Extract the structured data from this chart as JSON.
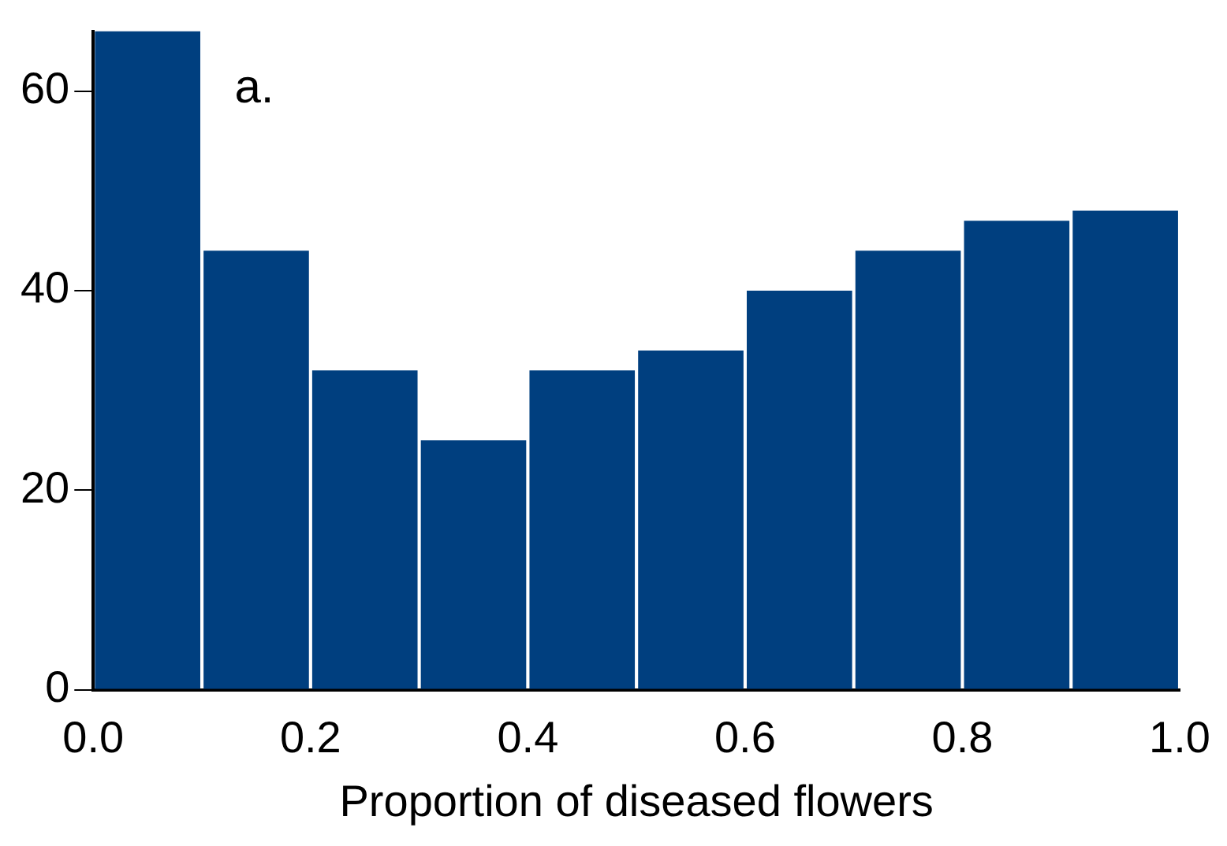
{
  "chart_data": {
    "type": "histogram",
    "xlabel": "Proportion of diseased flowers",
    "bins": [
      0,
      0.1,
      0.2,
      0.3,
      0.4,
      0.5,
      0.6,
      0.7,
      0.8,
      0.9,
      1.0
    ],
    "values": [
      66,
      44,
      32,
      25,
      32,
      34,
      40,
      44,
      47,
      48
    ],
    "color": "#003f7f",
    "xlim": [
      0,
      1
    ],
    "xticks": [
      {
        "value": 0,
        "label": "0.0"
      },
      {
        "value": 0.2,
        "label": "0.2"
      },
      {
        "value": 0.4,
        "label": "0.4"
      },
      {
        "value": 0.6,
        "label": "0.6"
      },
      {
        "value": 0.8,
        "label": "0.8"
      },
      {
        "value": 1,
        "label": "1.0"
      }
    ],
    "ylim": [
      0,
      66
    ],
    "yticks": [
      0,
      20,
      40,
      60
    ],
    "grid": false,
    "annotations": [
      "a."
    ]
  }
}
